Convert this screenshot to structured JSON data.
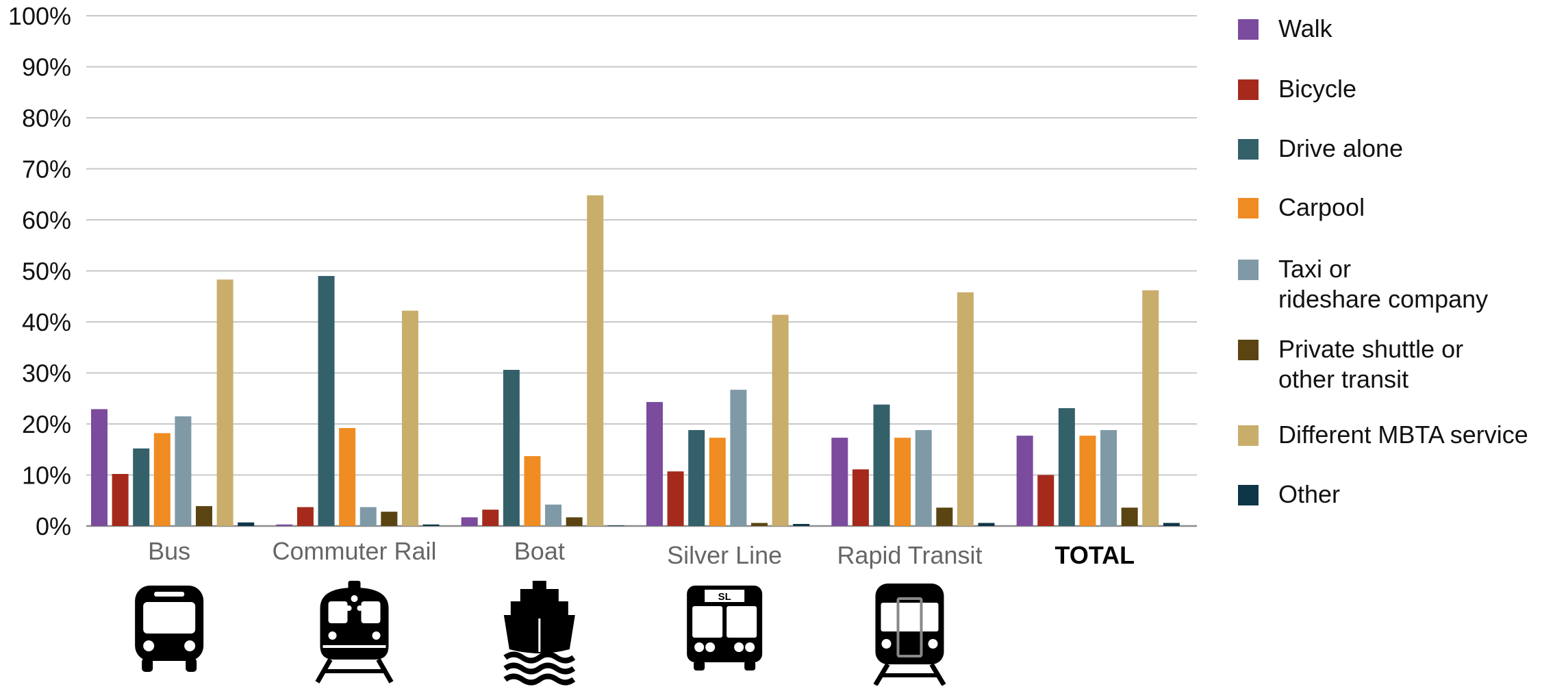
{
  "chart_data": {
    "type": "bar",
    "categories": [
      "Bus",
      "Commuter Rail",
      "Boat",
      "Silver Line",
      "Rapid Transit",
      "TOTAL"
    ],
    "y_unit": "percent",
    "ylim": [
      0,
      100
    ],
    "yticks": [
      0,
      10,
      20,
      30,
      40,
      50,
      60,
      70,
      80,
      90,
      100
    ],
    "ytick_labels": [
      "0%",
      "10%",
      "20%",
      "30%",
      "40%",
      "50%",
      "60%",
      "70%",
      "80%",
      "90%",
      "100%"
    ],
    "grid": true,
    "legend_position": "right",
    "series": [
      {
        "name": "Walk",
        "color": "#7b4b9e",
        "values": [
          22.9,
          0.3,
          1.7,
          24.3,
          17.3,
          17.7
        ]
      },
      {
        "name": "Bicycle",
        "color": "#a52a1c",
        "values": [
          10.2,
          3.7,
          3.2,
          10.7,
          11.1,
          10.0
        ]
      },
      {
        "name": "Drive alone",
        "color": "#34606a",
        "values": [
          15.2,
          49.0,
          30.6,
          18.8,
          23.8,
          23.1
        ]
      },
      {
        "name": "Carpool",
        "color": "#ef8c22",
        "values": [
          18.2,
          19.2,
          13.7,
          17.3,
          17.3,
          17.7
        ]
      },
      {
        "name": "Taxi or\nrideshare company",
        "color": "#7f9aa6",
        "values": [
          21.5,
          3.7,
          4.2,
          26.7,
          18.8,
          18.8
        ]
      },
      {
        "name": "Private shuttle or\nother transit",
        "color": "#5a4512",
        "values": [
          3.9,
          2.8,
          1.7,
          0.6,
          3.6,
          3.6
        ]
      },
      {
        "name": "Different MBTA service",
        "color": "#c9ad6b",
        "values": [
          48.3,
          42.2,
          64.8,
          41.4,
          45.8,
          46.2
        ]
      },
      {
        "name": "Other",
        "color": "#0f3647",
        "values": [
          0.7,
          0.3,
          0.1,
          0.4,
          0.6,
          0.6
        ]
      }
    ],
    "category_icons": [
      "bus-icon",
      "commuter-rail-icon",
      "boat-icon",
      "silver-line-bus-icon",
      "rapid-transit-icon",
      ""
    ],
    "silver_line_badge": "SL"
  }
}
